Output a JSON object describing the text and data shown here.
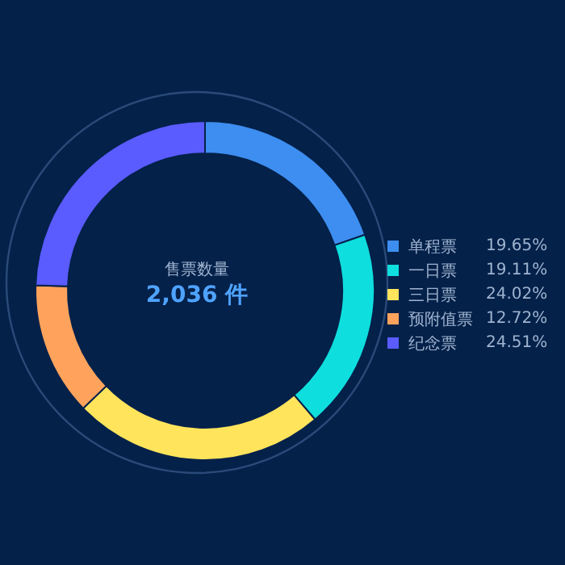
{
  "chart_data": {
    "type": "donut",
    "categories": [
      "单程票",
      "一日票",
      "三日票",
      "预附值票",
      "纪念票"
    ],
    "values": [
      19.65,
      19.11,
      24.02,
      12.72,
      24.51
    ],
    "value_labels": [
      "19.65%",
      "19.11%",
      "24.02%",
      "12.72%",
      "24.51%"
    ],
    "colors": [
      "#3d8ef0",
      "#0fdede",
      "#ffe45c",
      "#ffa35c",
      "#5a5cff"
    ],
    "annotations": [
      "售票数量",
      "2,036 件"
    ],
    "legend": "right"
  }
}
